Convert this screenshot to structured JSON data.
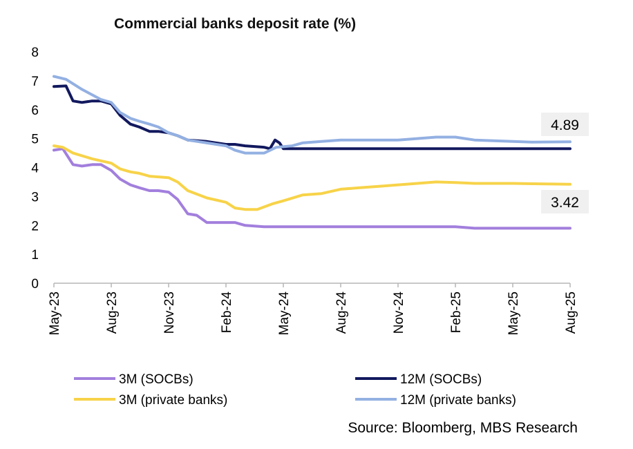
{
  "chart_data": {
    "type": "line",
    "title": "Commercial banks deposit rate (%)",
    "source": "Source: Bloomberg, MBS Research",
    "xlabel": "",
    "ylabel": "",
    "ylim": [
      0,
      8
    ],
    "yticks": [
      0,
      1,
      2,
      3,
      4,
      5,
      6,
      7,
      8
    ],
    "xlim": [
      "2023-05",
      "2025-08"
    ],
    "xticks": [
      {
        "label": "May-23",
        "date": "2023-05"
      },
      {
        "label": "Aug-23",
        "date": "2023-08"
      },
      {
        "label": "Nov-23",
        "date": "2023-11"
      },
      {
        "label": "Feb-24",
        "date": "2024-02"
      },
      {
        "label": "May-24",
        "date": "2024-05"
      },
      {
        "label": "Aug-24",
        "date": "2024-08"
      },
      {
        "label": "Nov-24",
        "date": "2024-11"
      },
      {
        "label": "Feb-25",
        "date": "2025-02"
      },
      {
        "label": "May-25",
        "date": "2025-05"
      },
      {
        "label": "Aug-25",
        "date": "2025-08"
      }
    ],
    "grid": false,
    "legend": "bottom",
    "series": [
      {
        "name": "3M (SOCBs)",
        "color": "#a27fdd",
        "points": [
          [
            "2023-05-01",
            4.6
          ],
          [
            "2023-05-15",
            4.65
          ],
          [
            "2023-06-01",
            4.1
          ],
          [
            "2023-06-15",
            4.05
          ],
          [
            "2023-07-01",
            4.1
          ],
          [
            "2023-07-15",
            4.1
          ],
          [
            "2023-08-01",
            3.9
          ],
          [
            "2023-08-15",
            3.6
          ],
          [
            "2023-09-01",
            3.4
          ],
          [
            "2023-09-15",
            3.3
          ],
          [
            "2023-10-01",
            3.2
          ],
          [
            "2023-10-15",
            3.2
          ],
          [
            "2023-11-01",
            3.15
          ],
          [
            "2023-11-15",
            2.9
          ],
          [
            "2023-12-01",
            2.4
          ],
          [
            "2023-12-15",
            2.35
          ],
          [
            "2024-01-01",
            2.1
          ],
          [
            "2024-01-15",
            2.1
          ],
          [
            "2024-02-01",
            2.1
          ],
          [
            "2024-02-15",
            2.1
          ],
          [
            "2024-03-01",
            2.0
          ],
          [
            "2024-04-01",
            1.95
          ],
          [
            "2024-05-01",
            1.95
          ],
          [
            "2024-08-01",
            1.95
          ],
          [
            "2024-11-01",
            1.95
          ],
          [
            "2025-01-15",
            1.95
          ],
          [
            "2025-02-01",
            1.95
          ],
          [
            "2025-03-01",
            1.9
          ],
          [
            "2025-05-01",
            1.9
          ],
          [
            "2025-08-01",
            1.9
          ]
        ]
      },
      {
        "name": "12M (SOCBs)",
        "color": "#12195e",
        "points": [
          [
            "2023-05-01",
            6.8
          ],
          [
            "2023-05-20",
            6.82
          ],
          [
            "2023-06-01",
            6.3
          ],
          [
            "2023-06-15",
            6.25
          ],
          [
            "2023-07-01",
            6.3
          ],
          [
            "2023-07-15",
            6.3
          ],
          [
            "2023-08-01",
            6.2
          ],
          [
            "2023-08-15",
            5.8
          ],
          [
            "2023-09-01",
            5.5
          ],
          [
            "2023-09-15",
            5.4
          ],
          [
            "2023-10-01",
            5.25
          ],
          [
            "2023-10-15",
            5.25
          ],
          [
            "2023-11-01",
            5.2
          ],
          [
            "2023-11-15",
            5.1
          ],
          [
            "2023-12-01",
            4.95
          ],
          [
            "2024-01-01",
            4.9
          ],
          [
            "2024-02-01",
            4.8
          ],
          [
            "2024-02-15",
            4.8
          ],
          [
            "2024-03-01",
            4.75
          ],
          [
            "2024-04-01",
            4.7
          ],
          [
            "2024-04-10",
            4.65
          ],
          [
            "2024-04-18",
            4.95
          ],
          [
            "2024-04-25",
            4.85
          ],
          [
            "2024-05-01",
            4.65
          ],
          [
            "2024-08-01",
            4.65
          ],
          [
            "2024-11-01",
            4.65
          ],
          [
            "2025-02-01",
            4.65
          ],
          [
            "2025-05-01",
            4.65
          ],
          [
            "2025-08-01",
            4.65
          ]
        ]
      },
      {
        "name": "3M (private banks)",
        "color": "#f7d349",
        "points": [
          [
            "2023-05-01",
            4.75
          ],
          [
            "2023-05-15",
            4.7
          ],
          [
            "2023-06-01",
            4.5
          ],
          [
            "2023-07-01",
            4.3
          ],
          [
            "2023-08-01",
            4.15
          ],
          [
            "2023-08-15",
            3.95
          ],
          [
            "2023-09-01",
            3.85
          ],
          [
            "2023-09-15",
            3.8
          ],
          [
            "2023-10-01",
            3.7
          ],
          [
            "2023-11-01",
            3.65
          ],
          [
            "2023-11-15",
            3.5
          ],
          [
            "2023-12-01",
            3.2
          ],
          [
            "2024-01-01",
            2.95
          ],
          [
            "2024-02-01",
            2.8
          ],
          [
            "2024-02-15",
            2.6
          ],
          [
            "2024-03-01",
            2.55
          ],
          [
            "2024-03-20",
            2.55
          ],
          [
            "2024-04-15",
            2.75
          ],
          [
            "2024-05-01",
            2.85
          ],
          [
            "2024-06-01",
            3.05
          ],
          [
            "2024-07-01",
            3.1
          ],
          [
            "2024-08-01",
            3.25
          ],
          [
            "2024-09-01",
            3.3
          ],
          [
            "2024-10-01",
            3.35
          ],
          [
            "2024-11-01",
            3.4
          ],
          [
            "2024-12-01",
            3.45
          ],
          [
            "2025-01-01",
            3.5
          ],
          [
            "2025-02-01",
            3.48
          ],
          [
            "2025-03-01",
            3.45
          ],
          [
            "2025-05-01",
            3.45
          ],
          [
            "2025-08-01",
            3.42
          ]
        ]
      },
      {
        "name": "12M (private banks)",
        "color": "#93b0e2",
        "points": [
          [
            "2023-05-01",
            7.15
          ],
          [
            "2023-05-20",
            7.05
          ],
          [
            "2023-06-15",
            6.7
          ],
          [
            "2023-07-15",
            6.35
          ],
          [
            "2023-08-01",
            6.25
          ],
          [
            "2023-08-15",
            5.9
          ],
          [
            "2023-09-01",
            5.7
          ],
          [
            "2023-09-15",
            5.6
          ],
          [
            "2023-10-01",
            5.5
          ],
          [
            "2023-10-15",
            5.4
          ],
          [
            "2023-11-01",
            5.2
          ],
          [
            "2023-11-15",
            5.1
          ],
          [
            "2023-12-01",
            4.95
          ],
          [
            "2024-01-01",
            4.85
          ],
          [
            "2024-02-01",
            4.75
          ],
          [
            "2024-02-15",
            4.6
          ],
          [
            "2024-03-01",
            4.5
          ],
          [
            "2024-04-01",
            4.5
          ],
          [
            "2024-04-20",
            4.7
          ],
          [
            "2024-05-15",
            4.75
          ],
          [
            "2024-06-01",
            4.85
          ],
          [
            "2024-07-01",
            4.9
          ],
          [
            "2024-08-01",
            4.95
          ],
          [
            "2024-09-01",
            4.95
          ],
          [
            "2024-10-01",
            4.95
          ],
          [
            "2024-11-01",
            4.95
          ],
          [
            "2025-01-01",
            5.05
          ],
          [
            "2025-02-01",
            5.05
          ],
          [
            "2025-03-01",
            4.95
          ],
          [
            "2025-05-01",
            4.9
          ],
          [
            "2025-06-01",
            4.88
          ],
          [
            "2025-08-01",
            4.89
          ]
        ]
      }
    ],
    "annotations": [
      {
        "text": "4.89",
        "date": "2025-08-01",
        "value": 4.89,
        "series": "12M (private banks)"
      },
      {
        "text": "3.42",
        "date": "2025-08-01",
        "value": 3.42,
        "series": "3M (private banks)"
      }
    ]
  }
}
